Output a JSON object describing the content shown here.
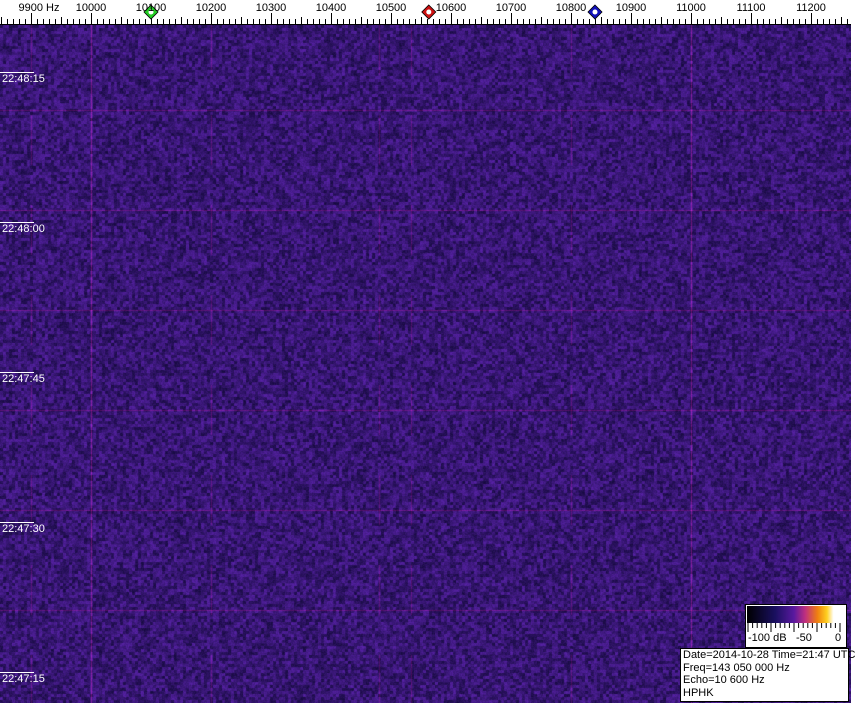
{
  "chart_data": {
    "type": "heatmap",
    "x_axis": {
      "unit_label": "9900 Hz",
      "ticks": [
        9900,
        10000,
        10100,
        10200,
        10300,
        10400,
        10500,
        10600,
        10700,
        10800,
        10900,
        11000,
        11100,
        11200
      ],
      "tick_labels": [
        "9900 Hz",
        "10000",
        "10100",
        "10200",
        "10300",
        "10400",
        "10500",
        "10600",
        "10700",
        "10800",
        "10900",
        "11000",
        "11100",
        "11200"
      ],
      "range": [
        9850,
        11265
      ],
      "minor_step": 10
    },
    "y_axis": {
      "tick_labels": [
        "22:48:15",
        "22:48:00",
        "22:47:45",
        "22:47:30",
        "22:47:15"
      ]
    },
    "markers": [
      {
        "freq": 10100,
        "color": "#22cc22"
      },
      {
        "freq": 10563,
        "color": "#cc1111"
      },
      {
        "freq": 10840,
        "color": "#1111bb"
      }
    ],
    "colorbar": {
      "labels": [
        "-100 dB",
        "-50",
        "0"
      ],
      "range": [
        -100,
        0
      ],
      "colors": [
        "#000000",
        "#1a1060",
        "#5a1aa0",
        "#c03080",
        "#f08010",
        "#ffd020",
        "#ffffff"
      ]
    },
    "strong_vertical_lines_hz": [
      10000,
      11000
    ]
  },
  "info": {
    "line1": "Date=2014-10-28 Time=21:47 UTC",
    "line2": "Freq=143 050 000 Hz",
    "line3": "Echo=10 600 Hz",
    "line4": "HPHK"
  }
}
